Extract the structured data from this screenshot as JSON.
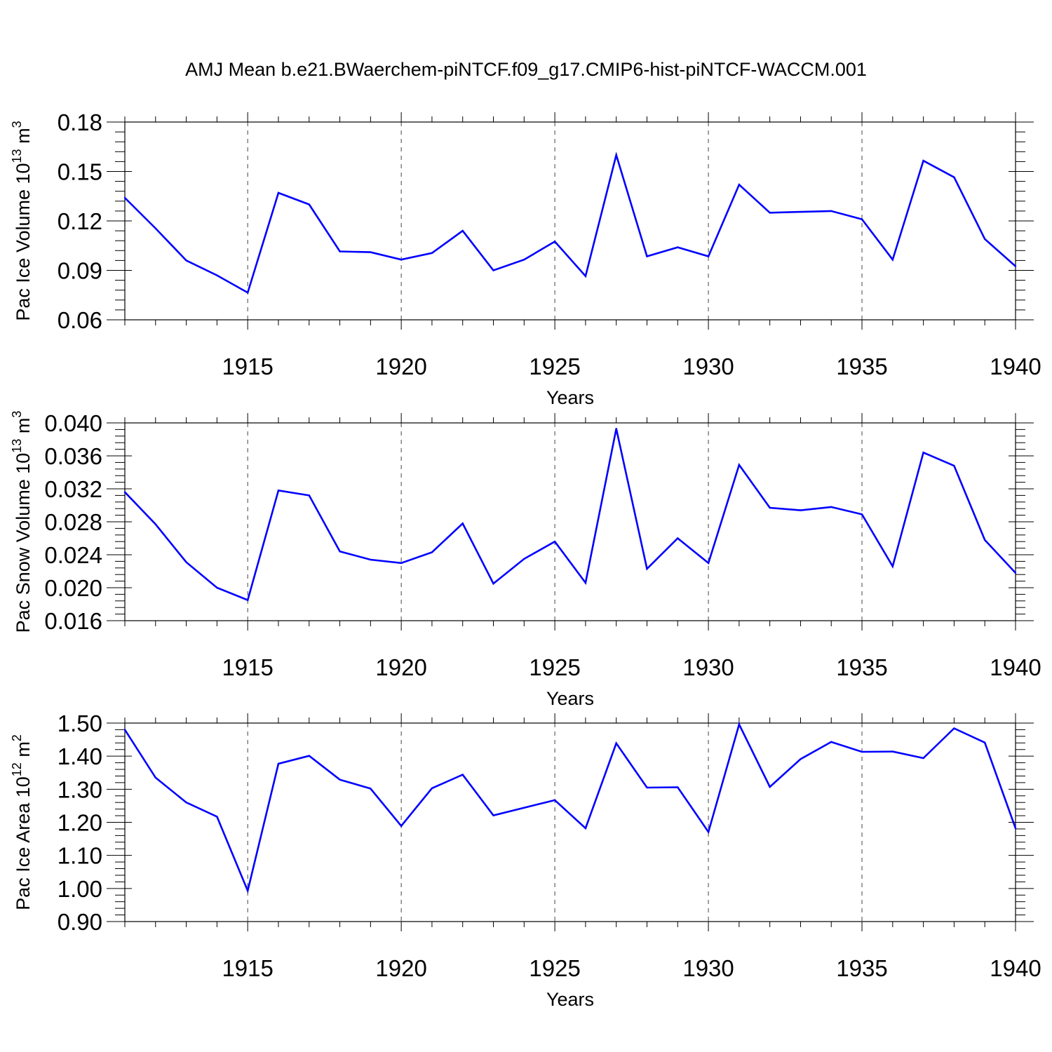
{
  "title": "AMJ Mean b.e21.BWaerchem-piNTCF.f09_g17.CMIP6-hist-piNTCF-WACCM.001",
  "line_color": "#0000ff",
  "chart_data": [
    {
      "type": "line",
      "ylabel": "Pac Ice Volume 10",
      "ylabel_exp": "13",
      "ylabel_unit": " m",
      "ylabel_unit_exp": "3",
      "xlabel": "Years",
      "xlim": [
        1911,
        1940
      ],
      "ylim": [
        0.06,
        0.18
      ],
      "xticks": [
        1915,
        1920,
        1925,
        1930,
        1935,
        1940
      ],
      "yticks": [
        0.06,
        0.09,
        0.12,
        0.15,
        0.18
      ],
      "ytick_labels": [
        "0.06",
        "0.09",
        "0.12",
        "0.15",
        "0.18"
      ],
      "x": [
        1911,
        1912,
        1913,
        1914,
        1915,
        1916,
        1917,
        1918,
        1919,
        1920,
        1921,
        1922,
        1923,
        1924,
        1925,
        1926,
        1927,
        1928,
        1929,
        1930,
        1931,
        1932,
        1933,
        1934,
        1935,
        1936,
        1937,
        1938,
        1939,
        1940
      ],
      "values": [
        0.134,
        0.1155,
        0.096,
        0.087,
        0.0765,
        0.137,
        0.13,
        0.1015,
        0.101,
        0.0965,
        0.1005,
        0.114,
        0.09,
        0.0965,
        0.1075,
        0.0865,
        0.16,
        0.0985,
        0.104,
        0.0985,
        0.142,
        0.125,
        0.1255,
        0.126,
        0.121,
        0.0965,
        0.1565,
        0.1465,
        0.109,
        0.0925
      ]
    },
    {
      "type": "line",
      "ylabel": "Pac Snow Volume 10",
      "ylabel_exp": "13",
      "ylabel_unit": " m",
      "ylabel_unit_exp": "3",
      "xlabel": "Years",
      "xlim": [
        1911,
        1940
      ],
      "ylim": [
        0.016,
        0.04
      ],
      "xticks": [
        1915,
        1920,
        1925,
        1930,
        1935,
        1940
      ],
      "yticks": [
        0.016,
        0.02,
        0.024,
        0.028,
        0.032,
        0.036,
        0.04
      ],
      "ytick_labels": [
        "0.016",
        "0.020",
        "0.024",
        "0.028",
        "0.032",
        "0.036",
        "0.040"
      ],
      "x": [
        1911,
        1912,
        1913,
        1914,
        1915,
        1916,
        1917,
        1918,
        1919,
        1920,
        1921,
        1922,
        1923,
        1924,
        1925,
        1926,
        1927,
        1928,
        1929,
        1930,
        1931,
        1932,
        1933,
        1934,
        1935,
        1936,
        1937,
        1938,
        1939,
        1940
      ],
      "values": [
        0.0316,
        0.0277,
        0.0231,
        0.02,
        0.0185,
        0.0318,
        0.0312,
        0.0244,
        0.0234,
        0.023,
        0.0243,
        0.0278,
        0.0205,
        0.0235,
        0.0256,
        0.0206,
        0.0393,
        0.0223,
        0.026,
        0.023,
        0.0349,
        0.0297,
        0.0294,
        0.0298,
        0.0289,
        0.0226,
        0.0364,
        0.0348,
        0.0258,
        0.0218
      ]
    },
    {
      "type": "line",
      "ylabel": "Pac Ice Area 10",
      "ylabel_exp": "12",
      "ylabel_unit": " m",
      "ylabel_unit_exp": "2",
      "xlabel": "Years",
      "xlim": [
        1911,
        1940
      ],
      "ylim": [
        0.9,
        1.5
      ],
      "xticks": [
        1915,
        1920,
        1925,
        1930,
        1935,
        1940
      ],
      "yticks": [
        0.9,
        1.0,
        1.1,
        1.2,
        1.3,
        1.4,
        1.5
      ],
      "ytick_labels": [
        "0.90",
        "1.00",
        "1.10",
        "1.20",
        "1.30",
        "1.40",
        "1.50"
      ],
      "x": [
        1911,
        1912,
        1913,
        1914,
        1915,
        1916,
        1917,
        1918,
        1919,
        1920,
        1921,
        1922,
        1923,
        1924,
        1925,
        1926,
        1927,
        1928,
        1929,
        1930,
        1931,
        1932,
        1933,
        1934,
        1935,
        1936,
        1937,
        1938,
        1939,
        1940
      ],
      "values": [
        1.48,
        1.335,
        1.26,
        1.217,
        0.993,
        1.377,
        1.401,
        1.329,
        1.302,
        1.189,
        1.303,
        1.344,
        1.221,
        1.244,
        1.267,
        1.182,
        1.439,
        1.305,
        1.306,
        1.171,
        1.496,
        1.307,
        1.391,
        1.443,
        1.413,
        1.414,
        1.394,
        1.484,
        1.441,
        1.182
      ]
    }
  ]
}
